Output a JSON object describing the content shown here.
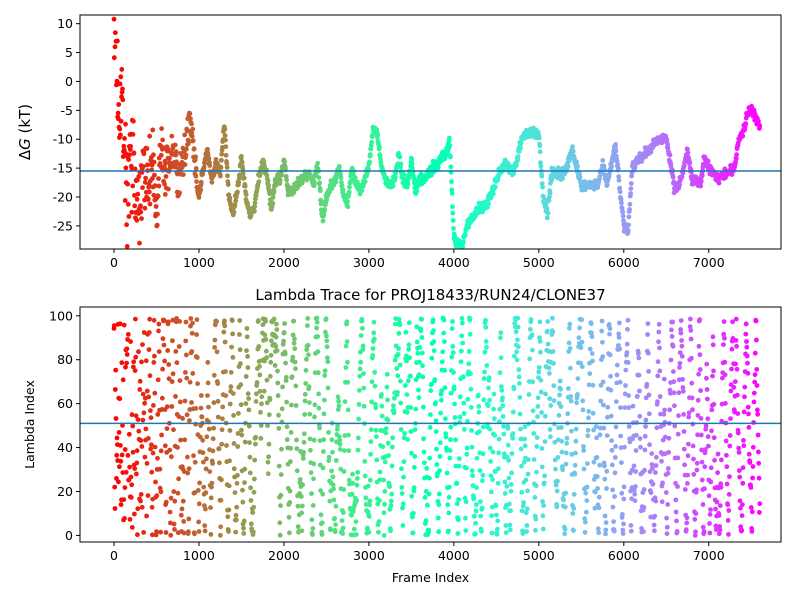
{
  "chart_data": [
    {
      "type": "scatter",
      "title": "",
      "xlabel": "",
      "ylabel": "ΔG (kT)",
      "ylabel_symbol": "ΔG",
      "ylabel_unit": "(kT)",
      "xlim": [
        -400,
        7850
      ],
      "ylim": [
        -29,
        11.5
      ],
      "xticks": [
        0,
        1000,
        2000,
        3000,
        4000,
        5000,
        6000,
        7000
      ],
      "yticks": [
        -25,
        -20,
        -15,
        -10,
        -5,
        0,
        5,
        10
      ],
      "hline": -15.5,
      "hline_color": "#1f77b4",
      "colormap": "rainbow (color encodes frame index: red at 0 → violet at 7600)",
      "n_frames": 7600,
      "anchors": [
        [
          0,
          10
        ],
        [
          20,
          9
        ],
        [
          40,
          5
        ],
        [
          60,
          -15
        ],
        [
          80,
          0
        ],
        [
          100,
          -10
        ],
        [
          120,
          -8
        ],
        [
          150,
          -20
        ],
        [
          200,
          -12
        ],
        [
          250,
          -18
        ],
        [
          300,
          -22
        ],
        [
          350,
          -14
        ],
        [
          400,
          -20
        ],
        [
          450,
          -12
        ],
        [
          500,
          -24
        ],
        [
          550,
          -10
        ],
        [
          600,
          -16
        ],
        [
          700,
          -12
        ],
        [
          750,
          -17
        ],
        [
          800,
          -15
        ],
        [
          900,
          -6
        ],
        [
          950,
          -14
        ],
        [
          1000,
          -20
        ],
        [
          1050,
          -15
        ],
        [
          1100,
          -12
        ],
        [
          1150,
          -17
        ],
        [
          1200,
          -14
        ],
        [
          1250,
          -16
        ],
        [
          1300,
          -7
        ],
        [
          1350,
          -20
        ],
        [
          1400,
          -23
        ],
        [
          1450,
          -19
        ],
        [
          1500,
          -13
        ],
        [
          1550,
          -20
        ],
        [
          1600,
          -23
        ],
        [
          1650,
          -22
        ],
        [
          1700,
          -17
        ],
        [
          1750,
          -14
        ],
        [
          1800,
          -16
        ],
        [
          1850,
          -22
        ],
        [
          1900,
          -17
        ],
        [
          1950,
          -17
        ],
        [
          2000,
          -14
        ],
        [
          2050,
          -19
        ],
        [
          2100,
          -19
        ],
        [
          2200,
          -17
        ],
        [
          2300,
          -16
        ],
        [
          2350,
          -18
        ],
        [
          2400,
          -14
        ],
        [
          2450,
          -24
        ],
        [
          2500,
          -20
        ],
        [
          2550,
          -18
        ],
        [
          2600,
          -17
        ],
        [
          2650,
          -15
        ],
        [
          2700,
          -20
        ],
        [
          2750,
          -21
        ],
        [
          2800,
          -15
        ],
        [
          2850,
          -18
        ],
        [
          2900,
          -19
        ],
        [
          3000,
          -15
        ],
        [
          3050,
          -8
        ],
        [
          3100,
          -9
        ],
        [
          3150,
          -15
        ],
        [
          3200,
          -17
        ],
        [
          3250,
          -18
        ],
        [
          3300,
          -17
        ],
        [
          3350,
          -13
        ],
        [
          3400,
          -17
        ],
        [
          3450,
          -18
        ],
        [
          3500,
          -14
        ],
        [
          3550,
          -19
        ],
        [
          3600,
          -17
        ],
        [
          3650,
          -17
        ],
        [
          3700,
          -16
        ],
        [
          3750,
          -15
        ],
        [
          3800,
          -15
        ],
        [
          3850,
          -13
        ],
        [
          3900,
          -13
        ],
        [
          3950,
          -10
        ],
        [
          4000,
          -27
        ],
        [
          4050,
          -28
        ],
        [
          4100,
          -29
        ],
        [
          4150,
          -25
        ],
        [
          4200,
          -24
        ],
        [
          4300,
          -22
        ],
        [
          4400,
          -21
        ],
        [
          4500,
          -17
        ],
        [
          4600,
          -14
        ],
        [
          4700,
          -16
        ],
        [
          4800,
          -10
        ],
        [
          4900,
          -9
        ],
        [
          5000,
          -9
        ],
        [
          5050,
          -20
        ],
        [
          5100,
          -23
        ],
        [
          5150,
          -16
        ],
        [
          5200,
          -16
        ],
        [
          5300,
          -16
        ],
        [
          5400,
          -12
        ],
        [
          5500,
          -18
        ],
        [
          5600,
          -18
        ],
        [
          5700,
          -18
        ],
        [
          5750,
          -14
        ],
        [
          5800,
          -18
        ],
        [
          5900,
          -11
        ],
        [
          5950,
          -18
        ],
        [
          6000,
          -25
        ],
        [
          6050,
          -26
        ],
        [
          6100,
          -15
        ],
        [
          6200,
          -13
        ],
        [
          6300,
          -12
        ],
        [
          6400,
          -10
        ],
        [
          6500,
          -10
        ],
        [
          6550,
          -14
        ],
        [
          6600,
          -19
        ],
        [
          6650,
          -18
        ],
        [
          6700,
          -15
        ],
        [
          6750,
          -12
        ],
        [
          6800,
          -17
        ],
        [
          6850,
          -17
        ],
        [
          6900,
          -18
        ],
        [
          6950,
          -13
        ],
        [
          7000,
          -15
        ],
        [
          7050,
          -16
        ],
        [
          7100,
          -17
        ],
        [
          7200,
          -16
        ],
        [
          7300,
          -15
        ],
        [
          7350,
          -10
        ],
        [
          7400,
          -9
        ],
        [
          7450,
          -6
        ],
        [
          7500,
          -5
        ],
        [
          7550,
          -6
        ],
        [
          7600,
          -8
        ]
      ]
    },
    {
      "type": "scatter",
      "title": "Lambda Trace for PROJ18433/RUN24/CLONE37",
      "xlabel": "Frame Index",
      "ylabel": "Lambda Index",
      "xlim": [
        -400,
        7850
      ],
      "ylim": [
        -3,
        104
      ],
      "xticks": [
        0,
        1000,
        2000,
        3000,
        4000,
        5000,
        6000,
        7000
      ],
      "yticks": [
        0,
        20,
        40,
        60,
        80,
        100
      ],
      "hline": 51,
      "hline_color": "#1f77b4",
      "colormap": "rainbow (color encodes frame index: red at 0 → violet at 7600)",
      "n_frames": 7600,
      "value_range": [
        0,
        99
      ]
    }
  ]
}
